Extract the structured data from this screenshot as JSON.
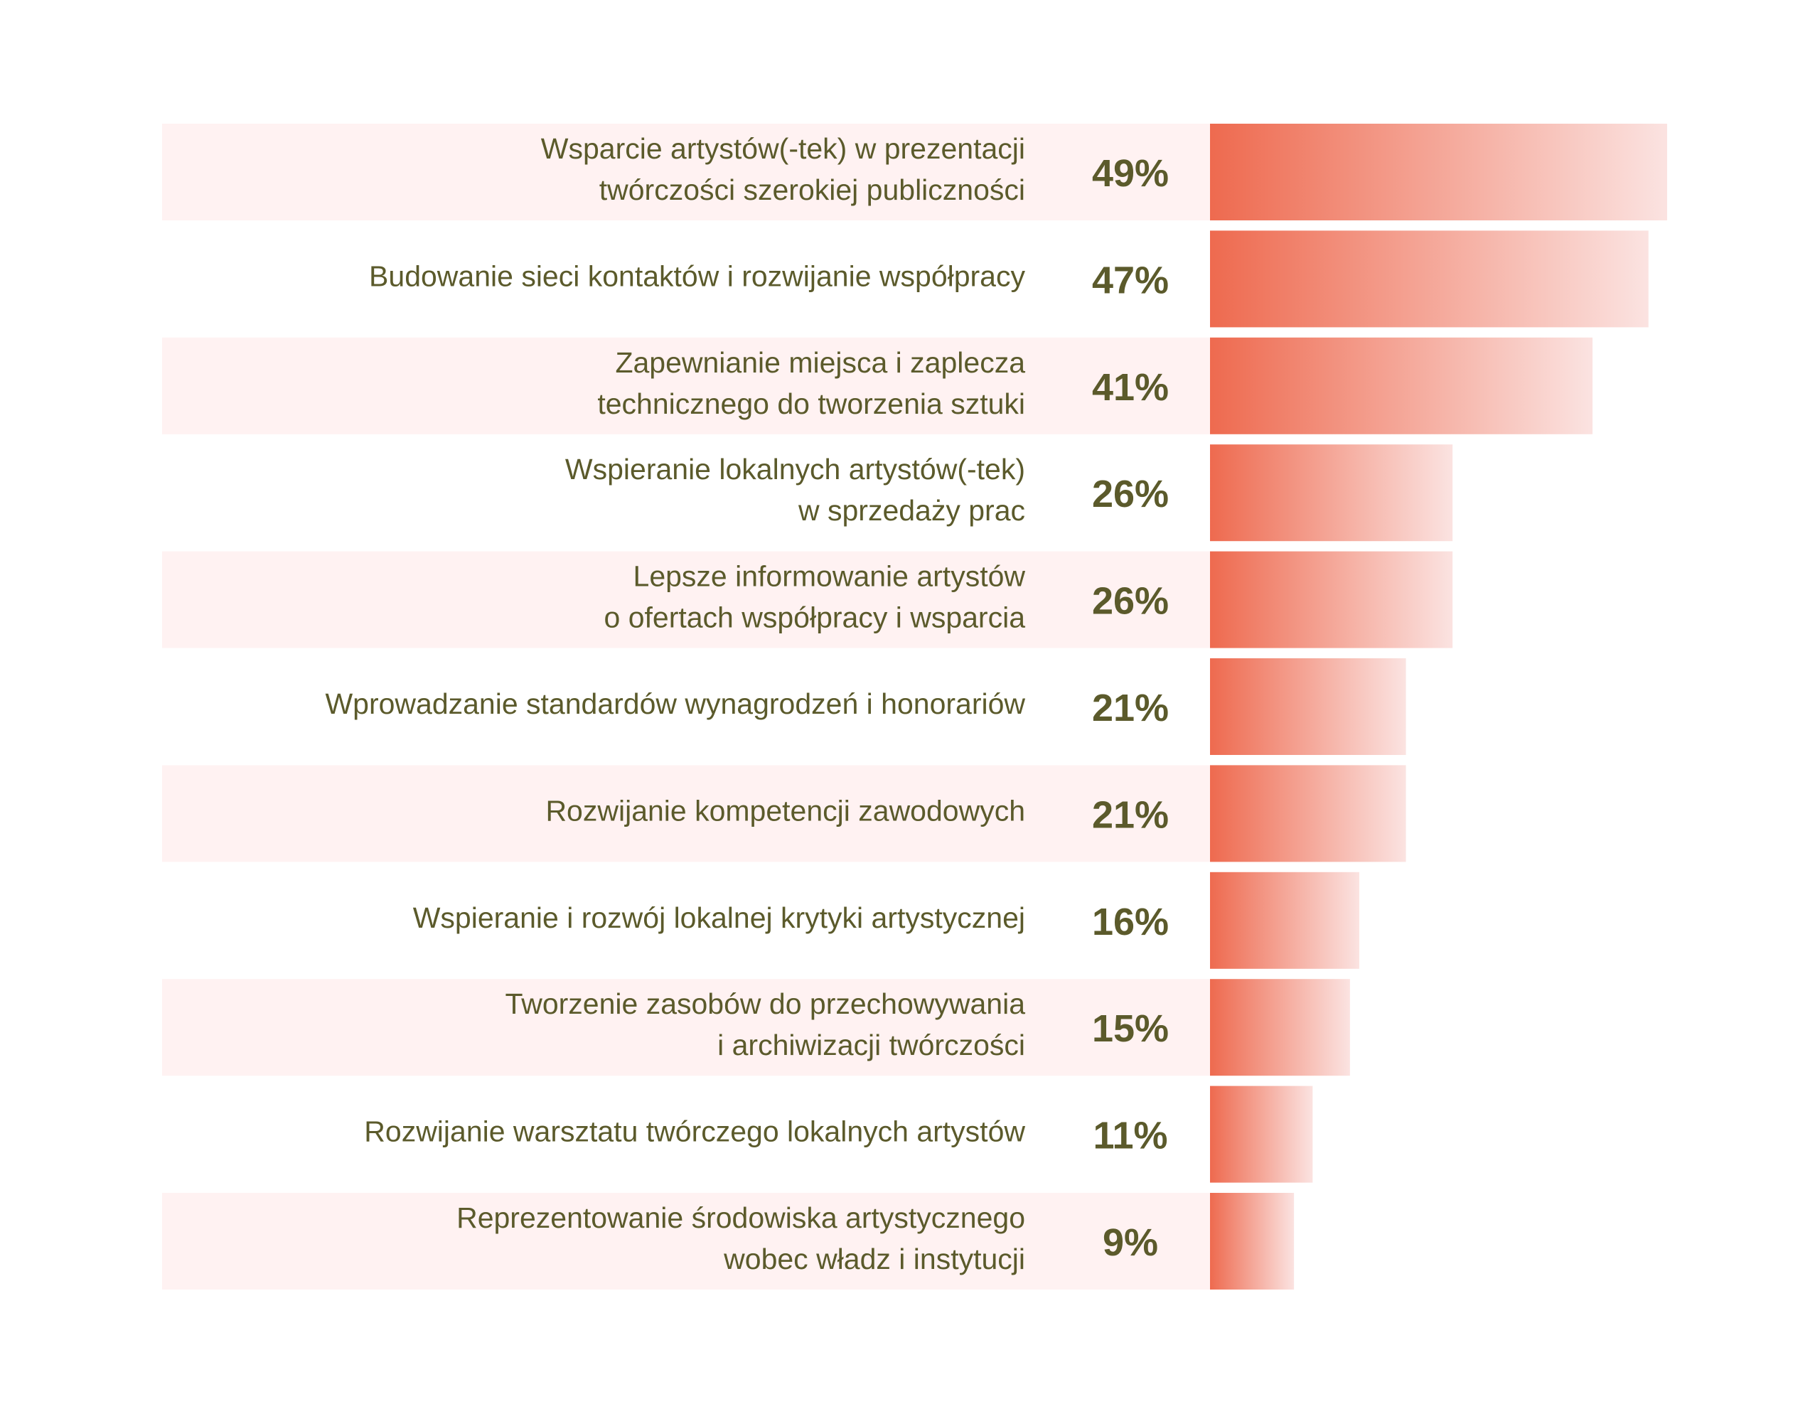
{
  "chart_data": {
    "type": "bar",
    "orientation": "horizontal",
    "categories": [
      [
        "Wsparcie artystów(-tek) w prezentacji",
        "twórczości szerokiej publiczności"
      ],
      [
        "Budowanie sieci kontaktów i rozwijanie współpracy"
      ],
      [
        "Zapewnianie miejsca i zaplecza",
        "technicznego do tworzenia sztuki"
      ],
      [
        "Wspieranie lokalnych artystów(-tek)",
        "w sprzedaży prac"
      ],
      [
        "Lepsze informowanie artystów",
        "o ofertach współpracy i wsparcia"
      ],
      [
        "Wprowadzanie standardów wynagrodzeń i honorariów"
      ],
      [
        "Rozwijanie kompetencji zawodowych"
      ],
      [
        "Wspieranie i rozwój lokalnej krytyki artystycznej"
      ],
      [
        "Tworzenie zasobów do przechowywania",
        "i archiwizacji twórczości"
      ],
      [
        "Rozwijanie warsztatu twórczego lokalnych artystów"
      ],
      [
        "Reprezentowanie środowiska artystycznego",
        "wobec władz i instytucji"
      ]
    ],
    "values": [
      49,
      47,
      41,
      26,
      26,
      21,
      21,
      16,
      15,
      11,
      9
    ],
    "value_labels": [
      "49%",
      "47%",
      "41%",
      "26%",
      "26%",
      "21%",
      "21%",
      "16%",
      "15%",
      "11%",
      "9%"
    ],
    "unit": "%",
    "xlim": [
      0,
      49
    ],
    "alternating_row_bands": true,
    "legend": "none",
    "grid": false
  },
  "colors": {
    "text": "#5b5a2b",
    "row_band": "#fff2f2",
    "bar_gradient_start": "#ee6a4f",
    "bar_gradient_end": "#fbe3e1"
  }
}
